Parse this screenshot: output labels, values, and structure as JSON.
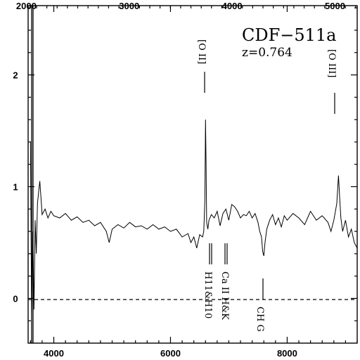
{
  "chart_data": {
    "type": "line",
    "title": "CDF−511a",
    "subtitle": "z=0.764",
    "xlabel": "",
    "ylabel": "",
    "observed_axis": {
      "range": [
        3560,
        9200
      ],
      "ticks": [
        4000,
        6000,
        8000
      ],
      "tick_labels": [
        "4000",
        "6000",
        "8000"
      ]
    },
    "rest_axis": {
      "ticks": [
        2000,
        3000,
        4000,
        5000
      ],
      "tick_labels": [
        "2000",
        "3000",
        "4000",
        "5000"
      ]
    },
    "ylim": [
      -0.4,
      2.62
    ],
    "y_ticks": [
      0,
      1,
      2
    ],
    "y_tick_labels": [
      "0",
      "1",
      "2"
    ],
    "zero_line": "dashed",
    "grid": false,
    "series": [
      {
        "x": [
          3600,
          3620,
          3640,
          3660,
          3680,
          3700,
          3720,
          3740,
          3760,
          3780,
          3800,
          3850,
          3900,
          3950,
          4000,
          4100,
          4200,
          4300,
          4400,
          4500,
          4600,
          4700,
          4800,
          4900,
          4950,
          5000,
          5100,
          5200,
          5300,
          5400,
          5500,
          5600,
          5700,
          5800,
          5900,
          6000,
          6100,
          6200,
          6300,
          6350,
          6400,
          6450,
          6500,
          6550,
          6570,
          6590,
          6600,
          6610,
          6620,
          6640,
          6660,
          6700,
          6750,
          6800,
          6850,
          6900,
          6950,
          7000,
          7050,
          7100,
          7150,
          7200,
          7250,
          7300,
          7350,
          7400,
          7450,
          7500,
          7530,
          7560,
          7580,
          7600,
          7620,
          7650,
          7700,
          7750,
          7800,
          7850,
          7900,
          7950,
          8000,
          8100,
          8200,
          8300,
          8400,
          8500,
          8600,
          8700,
          8750,
          8800,
          8850,
          8880,
          8900,
          8920,
          8950,
          9000,
          9050,
          9100,
          9150,
          9200
        ],
        "y": [
          1.4,
          -0.15,
          0.6,
          -0.1,
          0.7,
          0.4,
          0.85,
          0.95,
          1.05,
          0.9,
          0.75,
          0.8,
          0.72,
          0.78,
          0.74,
          0.72,
          0.76,
          0.7,
          0.73,
          0.68,
          0.7,
          0.65,
          0.68,
          0.6,
          0.5,
          0.62,
          0.66,
          0.63,
          0.68,
          0.64,
          0.65,
          0.62,
          0.66,
          0.62,
          0.64,
          0.6,
          0.62,
          0.55,
          0.58,
          0.5,
          0.55,
          0.45,
          0.57,
          0.55,
          0.6,
          0.88,
          1.6,
          1.2,
          0.68,
          0.62,
          0.7,
          0.75,
          0.72,
          0.78,
          0.65,
          0.76,
          0.8,
          0.7,
          0.84,
          0.82,
          0.78,
          0.72,
          0.75,
          0.74,
          0.78,
          0.72,
          0.76,
          0.68,
          0.6,
          0.55,
          0.42,
          0.38,
          0.5,
          0.62,
          0.7,
          0.75,
          0.66,
          0.72,
          0.64,
          0.74,
          0.7,
          0.76,
          0.72,
          0.66,
          0.78,
          0.7,
          0.74,
          0.68,
          0.6,
          0.7,
          0.85,
          1.1,
          0.9,
          0.72,
          0.6,
          0.7,
          0.55,
          0.62,
          0.5,
          0.45
        ]
      }
    ],
    "annotations": {
      "lines": [
        {
          "label": "[O II]",
          "x": 6575
        },
        {
          "label": "[O III]",
          "x": 8840
        },
        {
          "label": "H11&H10",
          "x": 6660
        },
        {
          "label": "Ca II H&K",
          "x": 6950
        },
        {
          "label": "CH G",
          "x": 7580
        }
      ]
    }
  }
}
